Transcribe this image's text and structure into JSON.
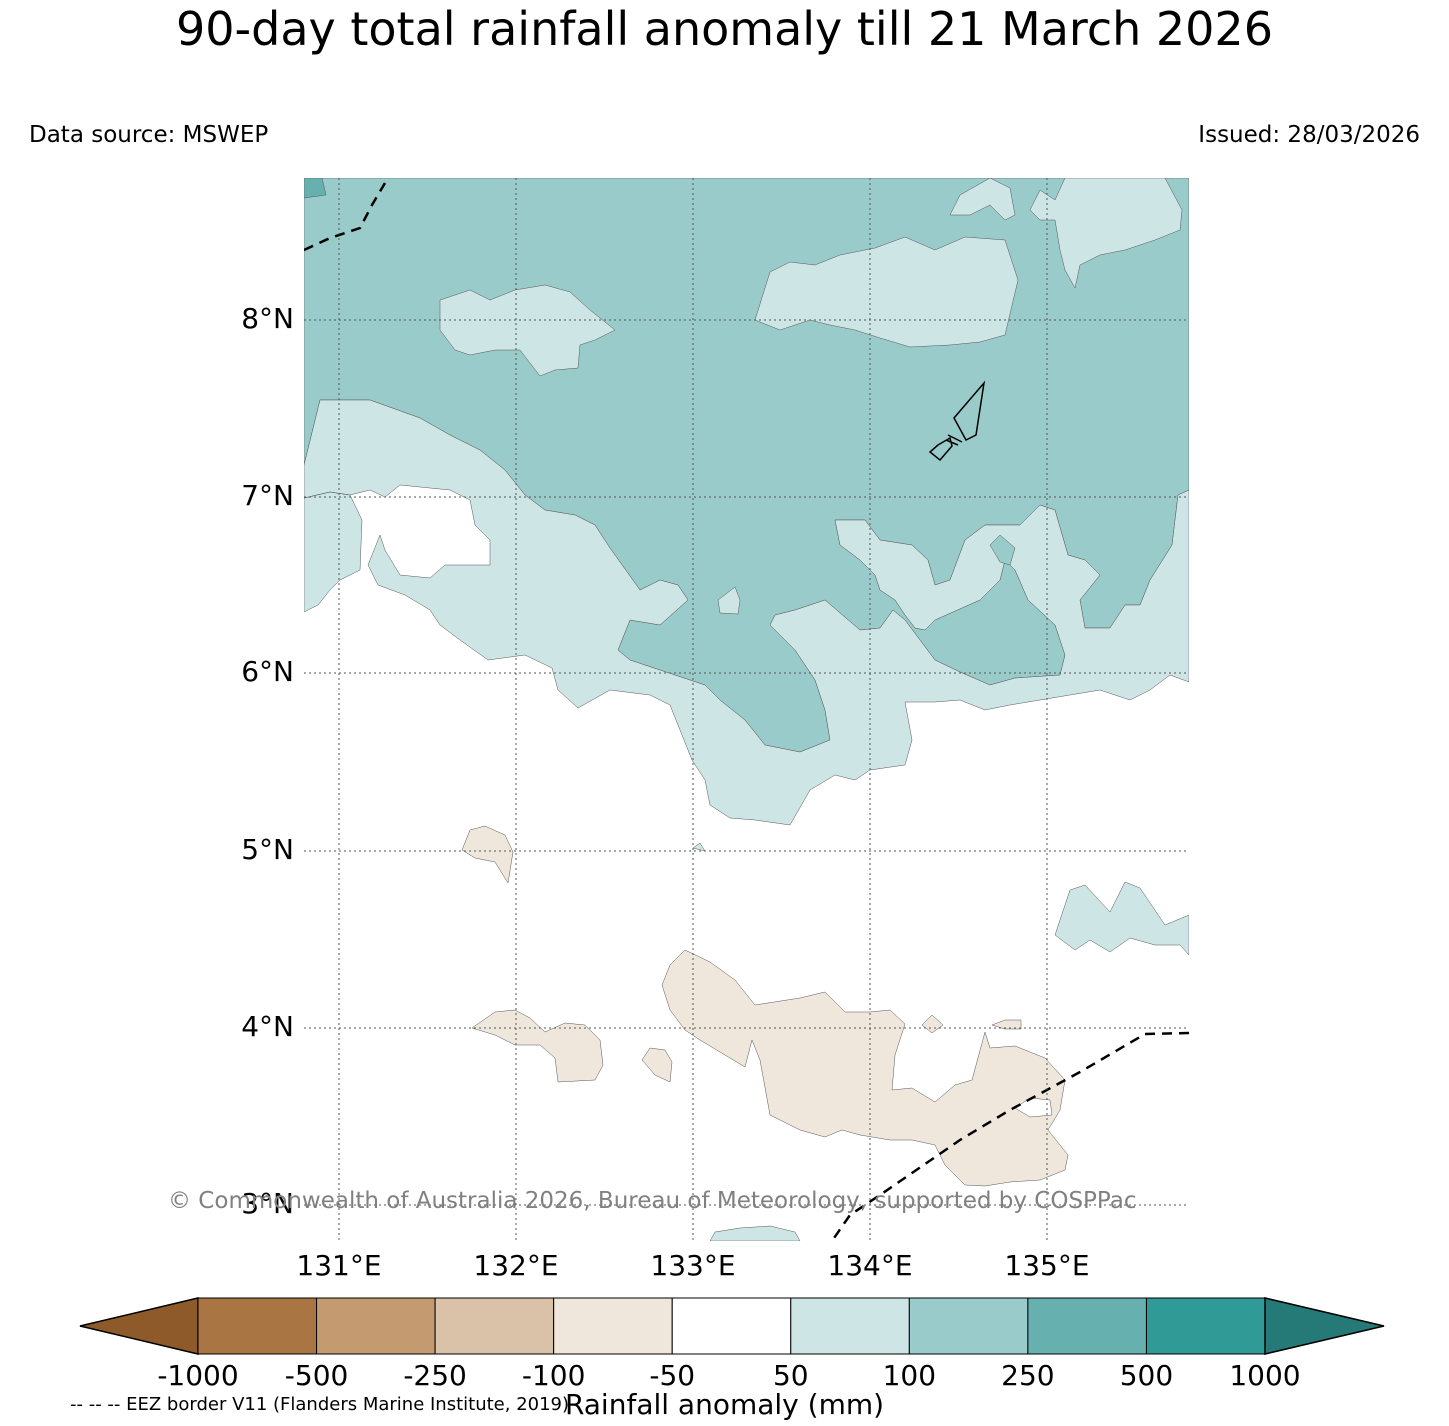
{
  "title": "90-day total rainfall anomaly till 21 March 2026",
  "data_source": "Data source: MSWEP",
  "issued": "Issued: 28/03/2026",
  "map": {
    "lat_labels": [
      "8°N",
      "7°N",
      "6°N",
      "5°N",
      "4°N",
      "3°N"
    ],
    "lon_labels": [
      "131°E",
      "132°E",
      "133°E",
      "134°E",
      "135°E"
    ],
    "lat_range": [
      2.8,
      8.8
    ],
    "lon_range": [
      130.8,
      135.8
    ]
  },
  "copyright": "© Commonwealth of Australia 2026, Bureau of Meteorology, supported by COSPPac",
  "eez_note": "-- -- -- EEZ border V11 (Flanders Marine Institute, 2019)",
  "colorbar": {
    "label": "Rainfall anomaly (mm)",
    "ticks": [
      "-1000",
      "-500",
      "-250",
      "-100",
      "-50",
      "50",
      "100",
      "250",
      "500",
      "1000"
    ],
    "colors": [
      "#8f5a2a",
      "#a87543",
      "#c49b71",
      "#d9c2a8",
      "#efe6dc",
      "#ffffff",
      "#cde5e4",
      "#9acbcb",
      "#66b0b0",
      "#309a96",
      "#257a77"
    ]
  }
}
